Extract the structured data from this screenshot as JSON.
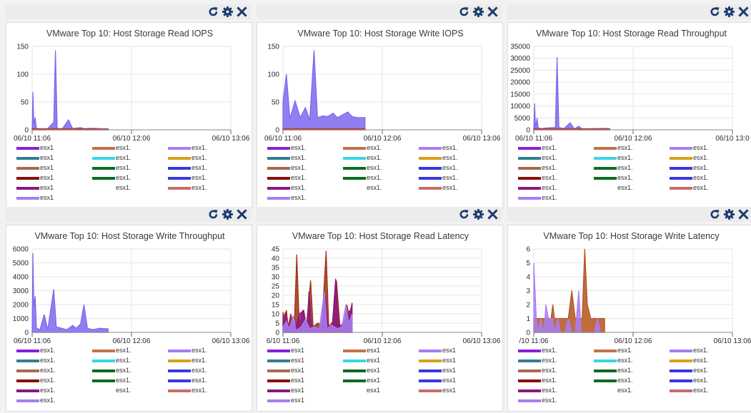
{
  "toolbar": {
    "refresh_icon": "refresh-icon",
    "settings_icon": "gear-icon",
    "close_icon": "close-icon"
  },
  "theme": {
    "icon_color": "#1a3a6e",
    "fill_default": "#7b68ee",
    "fill_alt": "#b5541c",
    "grid": "#e6e6e6"
  },
  "legend_colors": [
    "#8b1fd9",
    "#c0724a",
    "#a87df2",
    "#2f7f91",
    "#36d6e8",
    "#d8a012",
    "#a86a4e",
    "#0c6b22",
    "#3838e0",
    "#8c0d0d",
    "#0c6b22",
    "#3838e0",
    "#8b1780",
    "#ffffff",
    "#c96b6b",
    "#a87df2"
  ],
  "chart_data": [
    {
      "type": "area",
      "title": "VMware Top 10: Host Storage Read IOPS",
      "x_ticks": [
        "06/10 11:06",
        "06/10 12:06",
        "06/10 13:06"
      ],
      "y_ticks": [
        "0",
        "50",
        "100",
        "150"
      ],
      "ylim": [
        0,
        150
      ],
      "series": [
        {
          "color": "#7b68ee",
          "points": [
            [
              0,
              0
            ],
            [
              0.8,
              68
            ],
            [
              2,
              10
            ],
            [
              3.5,
              22
            ],
            [
              5,
              2
            ],
            [
              8,
              1
            ],
            [
              18,
              2
            ],
            [
              25,
              14
            ],
            [
              27,
              143
            ],
            [
              29,
              2
            ],
            [
              35,
              2
            ],
            [
              42,
              18
            ],
            [
              47,
              2
            ],
            [
              50,
              3
            ],
            [
              56,
              4
            ],
            [
              60,
              2
            ],
            [
              70,
              3
            ],
            [
              80,
              2
            ],
            [
              88,
              2
            ]
          ]
        },
        {
          "color": "#c0392b",
          "points": [
            [
              0,
              2
            ],
            [
              30,
              2
            ],
            [
              60,
              2
            ],
            [
              88,
              1
            ]
          ]
        }
      ],
      "legend": [
        "esx1",
        "esx1.",
        "esx1.",
        "esx1",
        "esx1.",
        "esx1.",
        "esx1",
        "esx1.",
        "esx1.",
        "esx1",
        "esx1.",
        "esx1.",
        "esx1",
        "esx1.",
        "esx1.",
        "esx1"
      ]
    },
    {
      "type": "area",
      "title": "VMware Top 10: Host Storage Write IOPS",
      "x_ticks": [
        "06/10 11:06",
        "06/10 12:06",
        "06/10 13:06"
      ],
      "y_ticks": [
        "0",
        "50",
        "100",
        "150"
      ],
      "ylim": [
        0,
        150
      ],
      "series": [
        {
          "color": "#7b68ee",
          "points": [
            [
              0,
              50
            ],
            [
              4,
              100
            ],
            [
              8,
              20
            ],
            [
              14,
              52
            ],
            [
              20,
              22
            ],
            [
              26,
              40
            ],
            [
              31,
              18
            ],
            [
              36,
              143
            ],
            [
              40,
              22
            ],
            [
              46,
              25
            ],
            [
              52,
              24
            ],
            [
              58,
              30
            ],
            [
              63,
              22
            ],
            [
              68,
              26
            ],
            [
              75,
              32
            ],
            [
              80,
              24
            ],
            [
              86,
              22
            ],
            [
              95,
              22
            ]
          ]
        },
        {
          "color": "#c0392b",
          "points": [
            [
              0,
              2
            ],
            [
              40,
              2
            ],
            [
              95,
              2
            ]
          ]
        }
      ],
      "legend": [
        "esx1.",
        "esx1.",
        "esx1.",
        "esx1.",
        "esx1.",
        "esx1.",
        "esx1.",
        "esx1.",
        "esx1.",
        "esx1.",
        "esx1.",
        "esx1.",
        "esx1.",
        "esx1.",
        "esx1.",
        "esx1."
      ]
    },
    {
      "type": "area",
      "title": "VMware Top 10: Host Storage Read Throughput",
      "x_ticks": [
        "06/10 11:06",
        "06/10 12:06",
        "06/10 13:0"
      ],
      "y_ticks": [
        "0",
        "5000",
        "10000",
        "15000",
        "20000",
        "25000",
        "30000",
        "35000"
      ],
      "ylim": [
        0,
        35000
      ],
      "series": [
        {
          "color": "#7b68ee",
          "points": [
            [
              0,
              0
            ],
            [
              1,
              11000
            ],
            [
              2,
              1000
            ],
            [
              4,
              5000
            ],
            [
              5,
              1000
            ],
            [
              8,
              500
            ],
            [
              15,
              800
            ],
            [
              25,
              1000
            ],
            [
              27,
              30500
            ],
            [
              29,
              1000
            ],
            [
              35,
              500
            ],
            [
              42,
              3000
            ],
            [
              47,
              400
            ],
            [
              52,
              1500
            ],
            [
              56,
              400
            ],
            [
              65,
              500
            ],
            [
              80,
              600
            ],
            [
              88,
              500
            ]
          ]
        },
        {
          "color": "#c0392b",
          "points": [
            [
              0,
              500
            ],
            [
              40,
              500
            ],
            [
              88,
              400
            ]
          ]
        }
      ],
      "legend": [
        "esx1.",
        "esx1.",
        "esx1.",
        "esx1.",
        "esx1.",
        "esx1.",
        "esx1.",
        "esx1.",
        "esx1.",
        "esx1.",
        "esx1.",
        "esx1.",
        "esx1.",
        "esx1.",
        "esx1.",
        "esx1."
      ]
    },
    {
      "type": "area",
      "title": "VMware Top 10: Host Storage Write Throughput",
      "x_ticks": [
        "06/10 11:06",
        "06/10 12:06",
        "06/10 13:06"
      ],
      "y_ticks": [
        "0",
        "1000",
        "2000",
        "3000",
        "4000",
        "5000",
        "6000"
      ],
      "ylim": [
        0,
        6000
      ],
      "series": [
        {
          "color": "#7b68ee",
          "points": [
            [
              0,
              0
            ],
            [
              0.8,
              5700
            ],
            [
              2,
              1800
            ],
            [
              3.5,
              2600
            ],
            [
              5,
              300
            ],
            [
              9,
              200
            ],
            [
              14,
              1300
            ],
            [
              18,
              200
            ],
            [
              25,
              3100
            ],
            [
              28,
              400
            ],
            [
              34,
              300
            ],
            [
              40,
              200
            ],
            [
              47,
              500
            ],
            [
              51,
              300
            ],
            [
              56,
              600
            ],
            [
              60,
              2000
            ],
            [
              64,
              300
            ],
            [
              70,
              200
            ],
            [
              78,
              300
            ],
            [
              88,
              250
            ]
          ]
        }
      ],
      "legend": [
        "esx1.",
        "esx1.",
        "esx1.",
        "esx1.",
        "esx1.",
        "esx1.",
        "esx1.",
        "esx1.",
        "esx1.",
        "esx1.",
        "esx1.",
        "esx1.",
        "esx1.",
        "esx1.",
        "esx1.",
        "esx1."
      ]
    },
    {
      "type": "area",
      "title": "VMware Top 10: Host Storage Read Latency",
      "x_ticks": [
        "6/10 11:06",
        "06/10 12:06",
        "06/10 13:06"
      ],
      "y_ticks": [
        "0",
        "5",
        "10",
        "15",
        "20",
        "25",
        "30",
        "35",
        "40",
        "45"
      ],
      "ylim": [
        0,
        45
      ],
      "series": [
        {
          "color": "#a0300f",
          "points": [
            [
              0,
              11
            ],
            [
              2,
              4
            ],
            [
              4,
              12
            ],
            [
              6,
              3
            ],
            [
              9,
              10
            ],
            [
              13,
              2
            ],
            [
              16,
              42
            ],
            [
              19,
              2
            ],
            [
              23,
              12
            ],
            [
              27,
              3
            ],
            [
              32,
              28
            ],
            [
              35,
              3
            ],
            [
              40,
              5
            ],
            [
              45,
              4
            ],
            [
              50,
              44
            ],
            [
              53,
              3
            ],
            [
              58,
              6
            ],
            [
              62,
              28
            ],
            [
              66,
              3
            ],
            [
              71,
              4
            ],
            [
              74,
              15
            ],
            [
              77,
              8
            ],
            [
              80,
              16
            ]
          ]
        },
        {
          "color": "#8b1780",
          "points": [
            [
              0,
              7
            ],
            [
              3,
              11
            ],
            [
              6,
              2
            ],
            [
              10,
              8
            ],
            [
              14,
              2
            ],
            [
              19,
              10
            ],
            [
              24,
              12
            ],
            [
              28,
              2
            ],
            [
              30,
              22
            ],
            [
              33,
              4
            ],
            [
              38,
              2
            ],
            [
              44,
              3
            ],
            [
              49,
              20
            ],
            [
              52,
              4
            ],
            [
              57,
              3
            ],
            [
              61,
              29
            ],
            [
              65,
              3
            ],
            [
              70,
              5
            ],
            [
              74,
              10
            ],
            [
              78,
              12
            ],
            [
              80,
              15
            ]
          ]
        },
        {
          "color": "#a87df2",
          "points": [
            [
              0,
              3
            ],
            [
              4,
              6
            ],
            [
              7,
              2
            ],
            [
              12,
              9
            ],
            [
              15,
              1
            ],
            [
              21,
              3
            ],
            [
              26,
              7
            ],
            [
              31,
              2
            ],
            [
              36,
              3
            ],
            [
              42,
              2
            ],
            [
              48,
              22
            ],
            [
              51,
              2
            ],
            [
              56,
              4
            ],
            [
              63,
              2
            ],
            [
              68,
              3
            ],
            [
              73,
              15
            ],
            [
              76,
              5
            ],
            [
              80,
              10
            ]
          ]
        }
      ],
      "legend": [
        "esx1",
        "esx1",
        "esx1",
        "esx1",
        "esx1",
        "esx1",
        "esx1",
        "esx1",
        "esx1",
        "esx1",
        "esx1",
        "esx1",
        "esx1",
        "esx1",
        "esx1",
        "esx1"
      ]
    },
    {
      "type": "area",
      "title": "VMware Top 10: Host Storage Write Latency",
      "x_ticks": [
        "/10 11:06",
        "06/10 12:06",
        "06/10 13:06"
      ],
      "y_ticks": [
        "0",
        "1",
        "2",
        "3",
        "4",
        "5",
        "6"
      ],
      "ylim": [
        0,
        6
      ],
      "series": [
        {
          "color": "#b5541c",
          "points": [
            [
              0,
              1
            ],
            [
              10,
              1
            ],
            [
              20,
              1
            ],
            [
              22,
              2
            ],
            [
              24,
              1
            ],
            [
              34,
              1
            ],
            [
              40,
              1
            ],
            [
              44,
              3
            ],
            [
              48,
              1
            ],
            [
              52,
              1
            ],
            [
              56,
              1
            ],
            [
              59,
              6
            ],
            [
              62,
              2
            ],
            [
              66,
              1
            ],
            [
              72,
              1
            ],
            [
              78,
              1
            ],
            [
              82,
              1
            ]
          ]
        },
        {
          "color": "#a87df2",
          "points": [
            [
              0,
              5
            ],
            [
              1.5,
              3
            ],
            [
              3,
              1
            ],
            [
              5,
              0
            ],
            [
              8,
              1
            ],
            [
              12,
              0
            ],
            [
              14,
              2
            ],
            [
              17,
              1
            ],
            [
              22,
              1
            ],
            [
              24,
              0
            ],
            [
              28,
              1
            ],
            [
              31,
              0
            ],
            [
              36,
              0
            ],
            [
              40,
              1
            ],
            [
              44,
              0
            ],
            [
              48,
              0
            ],
            [
              52,
              3
            ],
            [
              55,
              0
            ],
            [
              60,
              0
            ],
            [
              66,
              0
            ],
            [
              70,
              0
            ],
            [
              74,
              1
            ],
            [
              77,
              0
            ],
            [
              82,
              0
            ]
          ]
        }
      ],
      "legend": [
        "esx1.",
        "esx1.",
        "esx1.",
        "esx1.",
        "esx1.",
        "esx1.",
        "esx1.",
        "esx1.",
        "esx1.",
        "esx1.",
        "esx1.",
        "esx1.",
        "esx1.",
        "esx1.",
        "esx1.",
        "esx1."
      ]
    }
  ]
}
